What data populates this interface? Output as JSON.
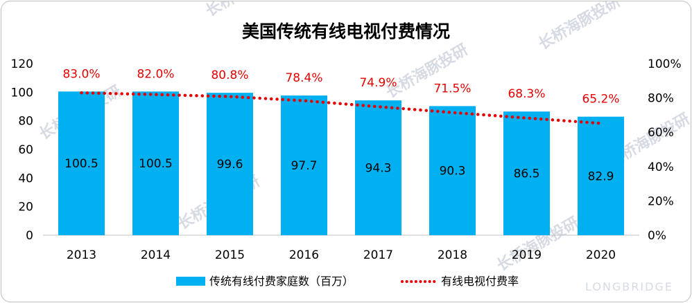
{
  "chart_data": {
    "type": "bar",
    "title": "美国传统有线电视付费情况",
    "categories": [
      "2013",
      "2014",
      "2015",
      "2016",
      "2017",
      "2018",
      "2019",
      "2020"
    ],
    "series": [
      {
        "name": "传统有线付费家庭数（百万）",
        "type": "bar",
        "axis": "left",
        "color": "#00b0f0",
        "values": [
          100.5,
          100.5,
          99.6,
          97.7,
          94.3,
          90.3,
          86.5,
          82.9
        ],
        "labels": [
          "100.5",
          "100.5",
          "99.6",
          "97.7",
          "94.3",
          "90.3",
          "86.5",
          "82.9"
        ]
      },
      {
        "name": "有线电视付费率",
        "type": "line",
        "style": "dotted",
        "axis": "right",
        "color": "#e60000",
        "values": [
          83.0,
          82.0,
          80.8,
          78.4,
          74.9,
          71.5,
          68.3,
          65.2
        ],
        "labels": [
          "83.0%",
          "82.0%",
          "80.8%",
          "78.4%",
          "74.9%",
          "71.5%",
          "68.3%",
          "65.2%"
        ]
      }
    ],
    "y_left": {
      "min": 0,
      "max": 120,
      "ticks": [
        "0",
        "20",
        "40",
        "60",
        "80",
        "100",
        "120"
      ]
    },
    "y_right": {
      "min": 0,
      "max": 100,
      "ticks": [
        "0%",
        "20%",
        "40%",
        "60%",
        "80%",
        "100%"
      ]
    },
    "grid": false,
    "legend_position": "bottom"
  },
  "watermark": {
    "cn": "长桥海豚投研",
    "en": "LONGBRIDGE"
  }
}
